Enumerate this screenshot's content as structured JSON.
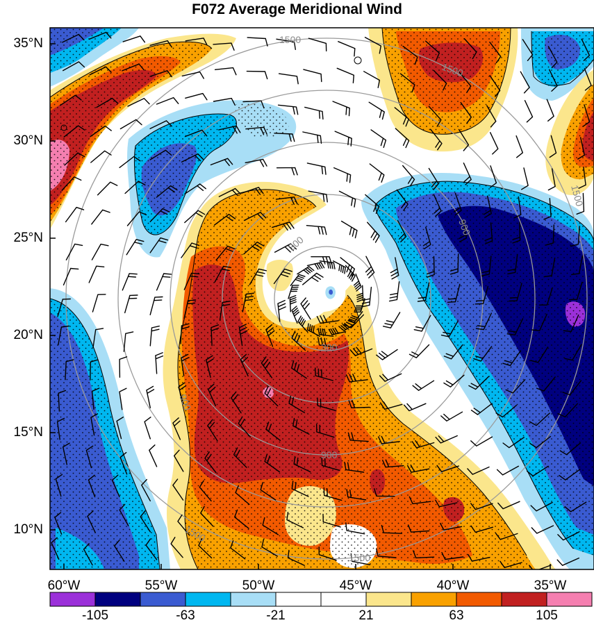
{
  "title": "F072 Average Meridional Wind",
  "lat_ticks": [
    "35°N",
    "30°N",
    "25°N",
    "20°N",
    "15°N",
    "10°N"
  ],
  "lon_ticks": [
    "60°W",
    "55°W",
    "50°W",
    "45°W",
    "40°W",
    "35°W"
  ],
  "range_ring_labels": [
    "300",
    "300",
    "900",
    "900",
    "900",
    "1500",
    "1500",
    "1500",
    "1500",
    "1500"
  ],
  "colorbar": {
    "labels": [
      "-105",
      "-63",
      "-21",
      "21",
      "63",
      "105"
    ],
    "colors": [
      "#9b30d9",
      "#00007f",
      "#3a5bd1",
      "#00b7f0",
      "#a8def6",
      "#ffffff",
      "#ffffff",
      "#fbe68c",
      "#f9a100",
      "#f25a00",
      "#c12020",
      "#f57fb0"
    ]
  },
  "palette": {
    "deep_blue": "#00007f",
    "medium_blue": "#3a5bd1",
    "cyan": "#00b7f0",
    "light_blue": "#a8def6",
    "yellow": "#fbe68c",
    "orange": "#f9a100",
    "red_orange": "#f25a00",
    "dark_red": "#c12020",
    "pink": "#f57fb0",
    "purple": "#9b30d9"
  }
}
